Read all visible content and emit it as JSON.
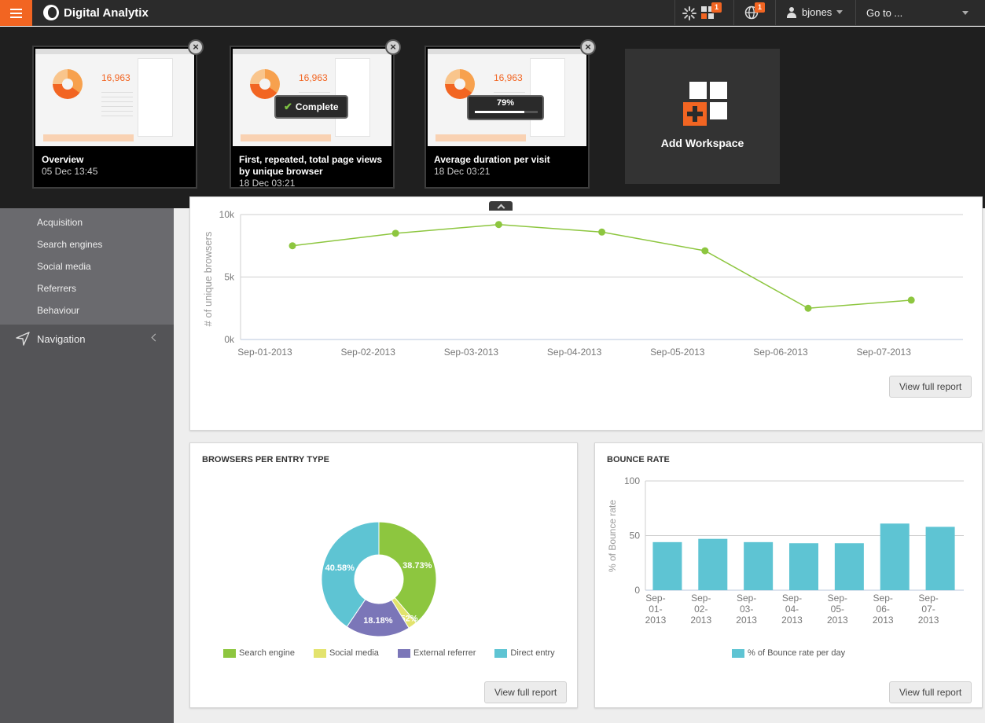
{
  "topbar": {
    "app_name": "Digital Analytix",
    "workspace_badge": "1",
    "globe_badge": "1",
    "user": "bjones",
    "goto_label": "Go to ..."
  },
  "workspaces": [
    {
      "title": "Overview",
      "date": "05 Dec 13:45"
    },
    {
      "title": "First, repeated, total page views by unique browser",
      "date": "18 Dec 03:21",
      "status": "Complete"
    },
    {
      "title": "Average duration per visit",
      "date": "18 Dec 03:21",
      "progress": "79%",
      "progress_value": 0.79
    }
  ],
  "add_workspace_label": "Add Workspace",
  "sidebar": {
    "items": [
      "Acquisition",
      "Search engines",
      "Social media",
      "Referrers",
      "Behaviour"
    ],
    "nav_label": "Navigation"
  },
  "view_full_report": "View full report",
  "charts": {
    "browsers": {
      "type": "line",
      "ylabel": "# of unique browsers",
      "y_ticks": [
        "10k",
        "5k",
        "0k"
      ],
      "ylim": [
        0,
        10000
      ],
      "x": [
        "Sep-01-2013",
        "Sep-02-2013",
        "Sep-03-2013",
        "Sep-04-2013",
        "Sep-05-2013",
        "Sep-06-2013",
        "Sep-07-2013"
      ],
      "values": [
        7500,
        8500,
        9200,
        8600,
        7100,
        2500,
        3150
      ],
      "color": "#8dc63f"
    },
    "entry_type": {
      "type": "pie",
      "title": "BROWSERS PER ENTRY TYPE",
      "slices": [
        {
          "name": "Search engine",
          "value": 38.73,
          "label": "38.73%",
          "color": "#8dc63f"
        },
        {
          "name": "Social media",
          "value": 2.52,
          "label": "2.52%",
          "color": "#e3e36d"
        },
        {
          "name": "External referrer",
          "value": 18.18,
          "label": "18.18%",
          "color": "#7b76b8"
        },
        {
          "name": "Direct entry",
          "value": 40.58,
          "label": "40.58%",
          "color": "#5ec4d3"
        }
      ]
    },
    "bounce": {
      "type": "bar",
      "title": "BOUNCE RATE",
      "ylabel": "% of Bounce rate",
      "y_ticks": [
        "100",
        "50",
        "0"
      ],
      "ylim": [
        0,
        100
      ],
      "categories": [
        [
          "Sep-",
          "01-",
          "2013"
        ],
        [
          "Sep-",
          "02-",
          "2013"
        ],
        [
          "Sep-",
          "03-",
          "2013"
        ],
        [
          "Sep-",
          "04-",
          "2013"
        ],
        [
          "Sep-",
          "05-",
          "2013"
        ],
        [
          "Sep-",
          "06-",
          "2013"
        ],
        [
          "Sep-",
          "07-",
          "2013"
        ]
      ],
      "values": [
        44,
        47,
        44,
        43,
        43,
        61,
        58
      ],
      "series_name": "% of Bounce rate per day",
      "color": "#5ec4d3"
    }
  }
}
